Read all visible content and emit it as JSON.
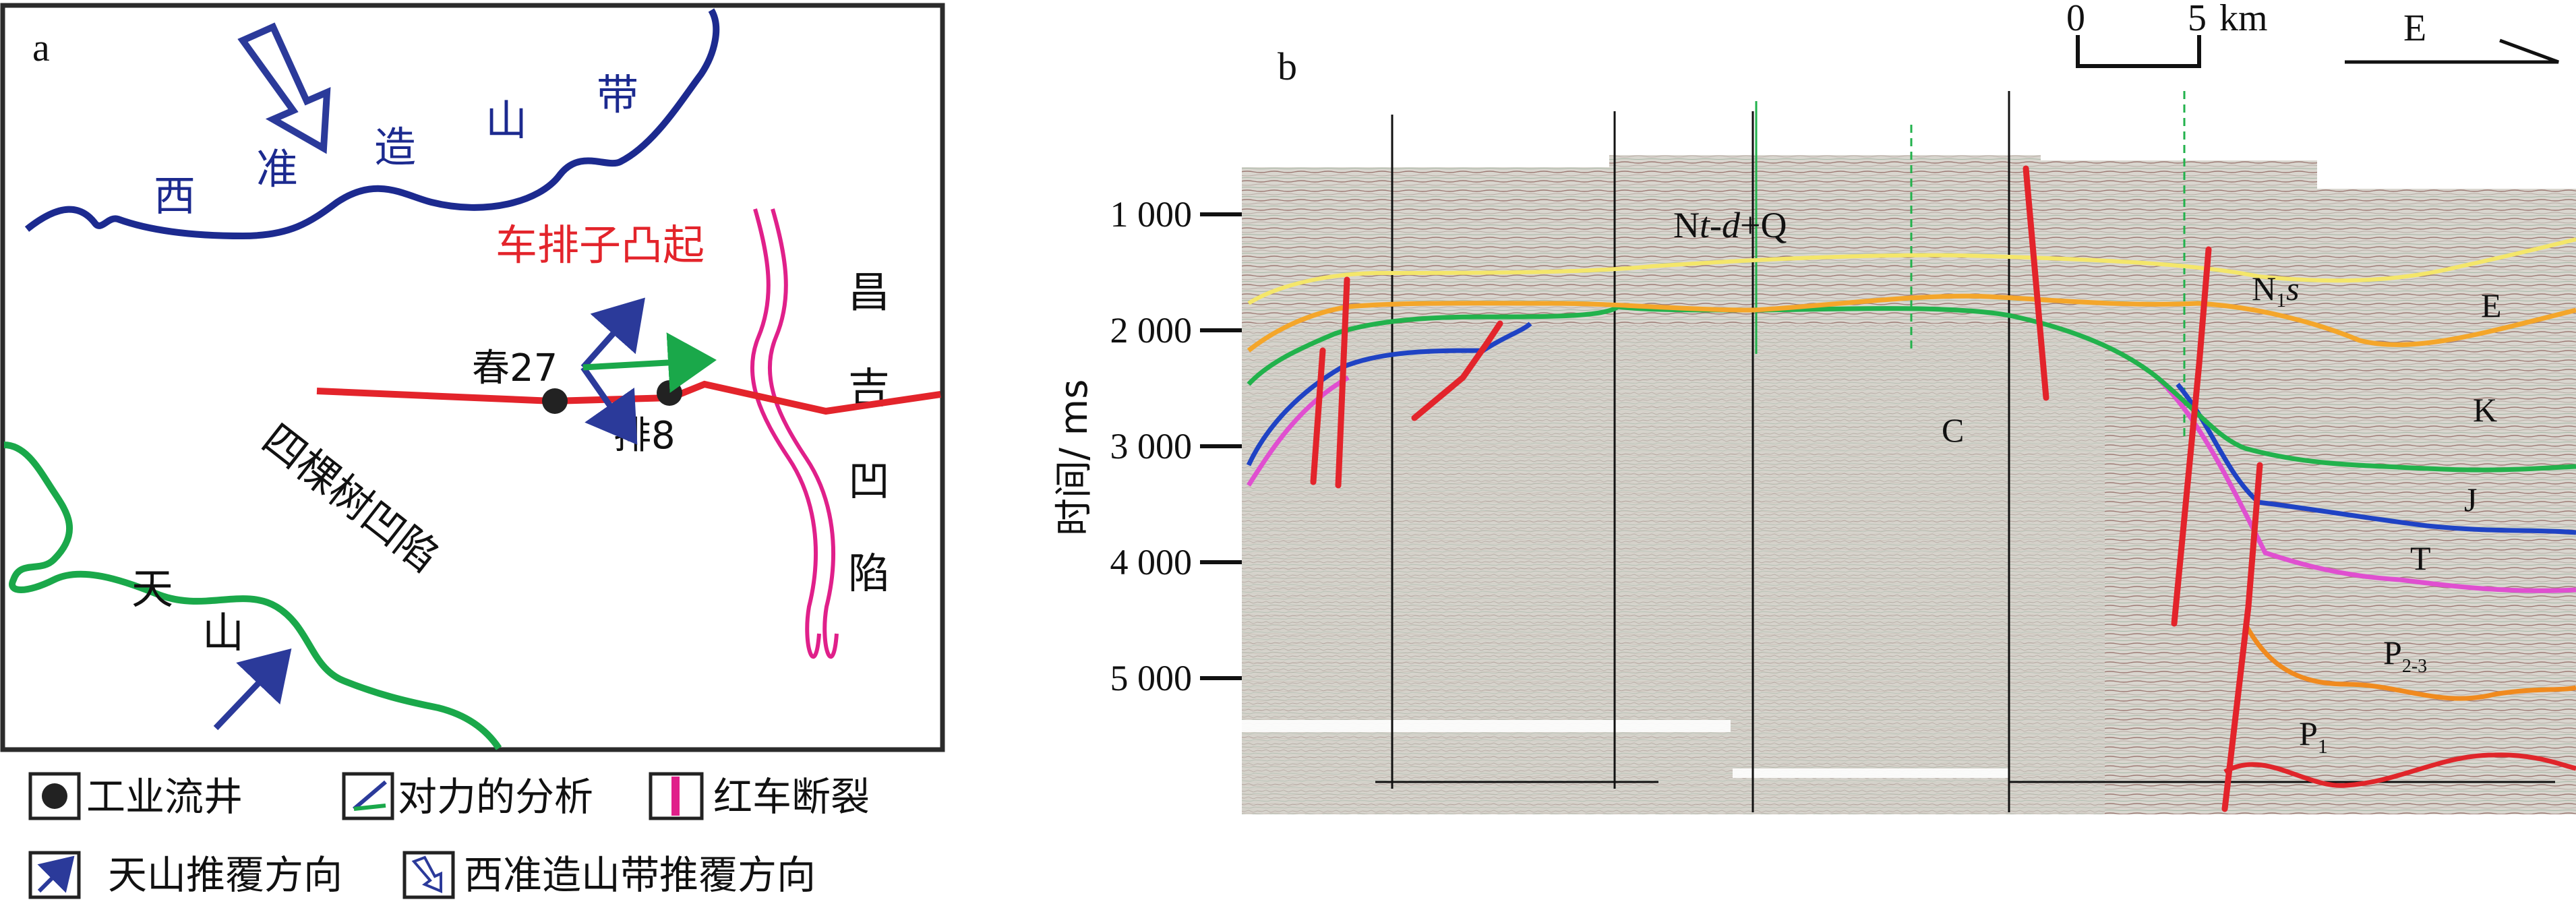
{
  "panel_a": {
    "label": "a",
    "orogen_chars": [
      "西",
      "准",
      "造",
      "山",
      "带"
    ],
    "uplift_label": "车排子凸起",
    "depression_left": "四棵树凹陷",
    "depression_right_chars": [
      "昌",
      "吉",
      "凹",
      "陷"
    ],
    "tianshan_chars": [
      "天",
      "山"
    ],
    "well_1": "春27",
    "well_2": "排8",
    "colors": {
      "orogen": "#1c2a8f",
      "tianshan": "#1aa84a",
      "section": "#e3242b",
      "fault": "#e0208a",
      "arrow_blue": "#2b3a9a",
      "arrow_green": "#1aa84a"
    }
  },
  "legend": {
    "row1": {
      "well_label": "工业流井",
      "force_label": "对力的分析",
      "fault_label": "红车断裂"
    },
    "row2": {
      "tianshan_label": "天山推覆方向",
      "west_label": "西准造山带推覆方向"
    }
  },
  "panel_b": {
    "label": "b",
    "scale": {
      "zero": "0",
      "five": "5",
      "unit": "km"
    },
    "direction": "E",
    "y_axis_title": "时间/ ms",
    "y_ticks": [
      {
        "value": 1000,
        "label": "1 000"
      },
      {
        "value": 2000,
        "label": "2 000"
      },
      {
        "value": 3000,
        "label": "3 000"
      },
      {
        "value": 4000,
        "label": "4 000"
      },
      {
        "value": 5000,
        "label": "5 000"
      }
    ],
    "unit_labels": {
      "ntdq_a": "N",
      "ntdq_b": "t",
      "ntdq_c": "-",
      "ntdq_d": "d",
      "ntdq_e": "+Q",
      "n1s_a": "N",
      "n1s_sub": "1",
      "n1s_b": "s",
      "c": "C",
      "e": "E",
      "k": "K",
      "j": "J",
      "t": "T",
      "p23": "P",
      "p23_sub": "2-3",
      "p1": "P",
      "p1_sub": "1"
    },
    "horizon_colors": {
      "n1s": "#f4e66a",
      "e": "#f4a62a",
      "k": "#22b24c",
      "j": "#1f43c4",
      "t": "#e04fd0",
      "p23": "#f08a1e",
      "p1": "#e0252a",
      "fault": "#e3242b"
    }
  }
}
